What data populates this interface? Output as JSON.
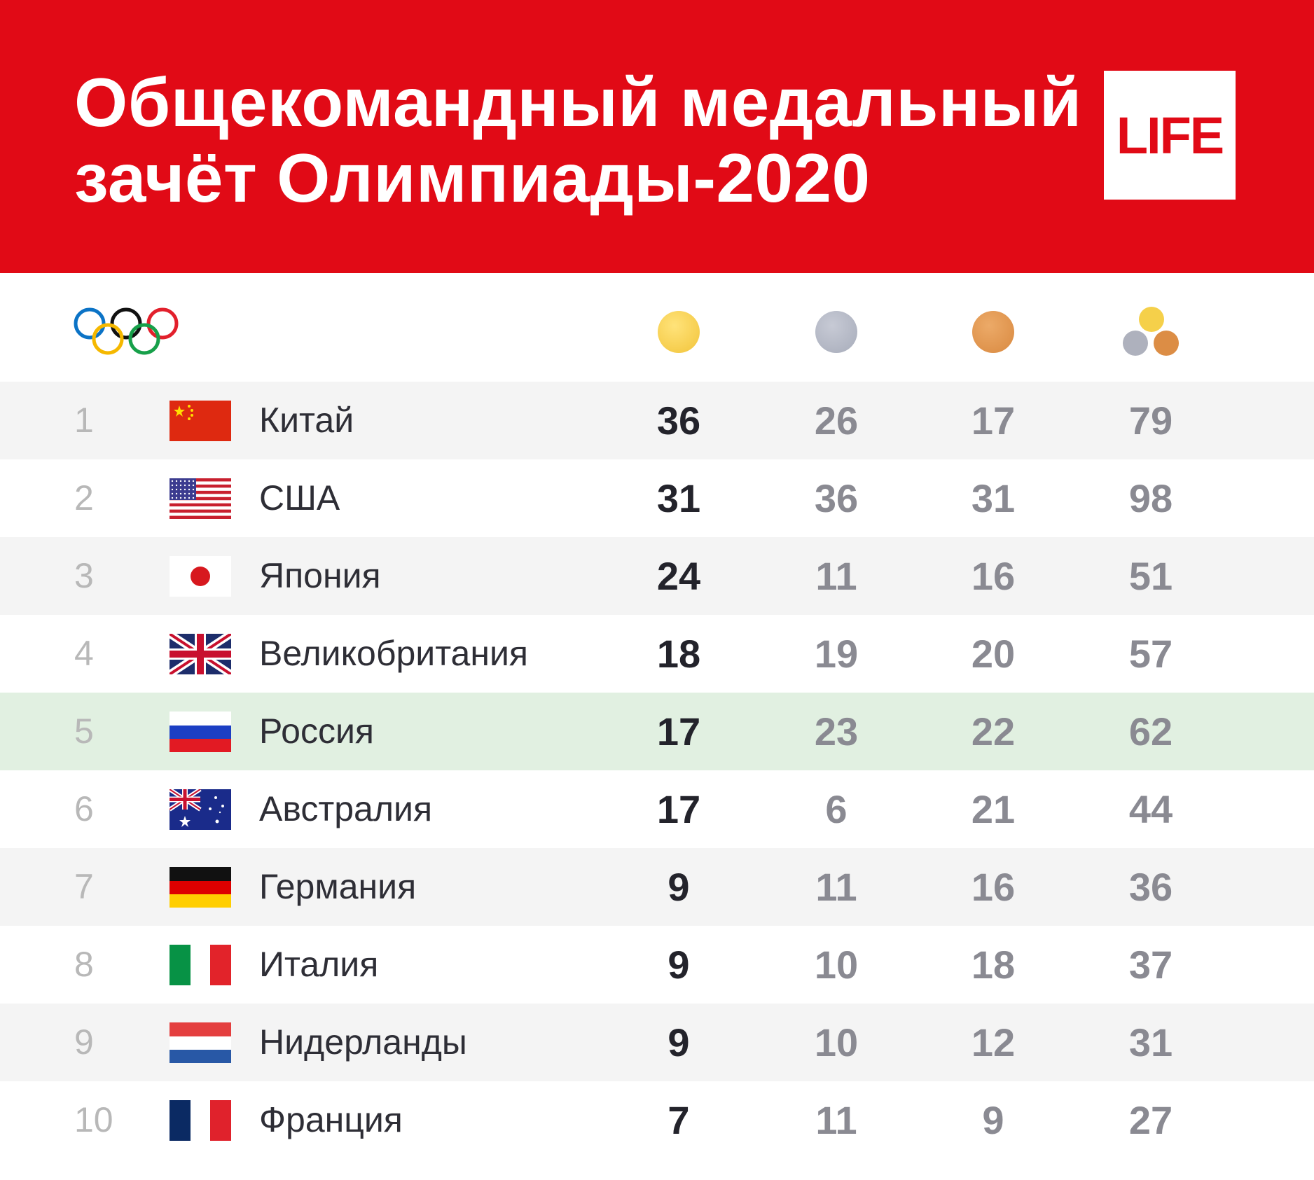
{
  "header": {
    "title_line1": "Общекомандный медальный",
    "title_line2": "зачёт Олимпиады-2020",
    "logo": "LIFE",
    "brand_color": "#e10a16"
  },
  "column_icons": [
    "olympic-rings-icon",
    "gold-medal-icon",
    "silver-medal-icon",
    "bronze-medal-icon",
    "total-medals-icon"
  ],
  "medal_colors": {
    "gold": "#f2c43a",
    "silver": "#a7acba",
    "bronze": "#d98940"
  },
  "rows": [
    {
      "rank": "1",
      "flag": "china-flag-icon",
      "country": "Китай",
      "gold": "36",
      "silver": "26",
      "bronze": "17",
      "total": "79"
    },
    {
      "rank": "2",
      "flag": "usa-flag-icon",
      "country": "США",
      "gold": "31",
      "silver": "36",
      "bronze": "31",
      "total": "98"
    },
    {
      "rank": "3",
      "flag": "japan-flag-icon",
      "country": "Япония",
      "gold": "24",
      "silver": "11",
      "bronze": "16",
      "total": "51"
    },
    {
      "rank": "4",
      "flag": "uk-flag-icon",
      "country": "Великобритания",
      "gold": "18",
      "silver": "19",
      "bronze": "20",
      "total": "57"
    },
    {
      "rank": "5",
      "flag": "russia-flag-icon",
      "country": "Россия",
      "gold": "17",
      "silver": "23",
      "bronze": "22",
      "total": "62"
    },
    {
      "rank": "6",
      "flag": "australia-flag-icon",
      "country": "Австралия",
      "gold": "17",
      "silver": "6",
      "bronze": "21",
      "total": "44"
    },
    {
      "rank": "7",
      "flag": "germany-flag-icon",
      "country": "Германия",
      "gold": "9",
      "silver": "11",
      "bronze": "16",
      "total": "36"
    },
    {
      "rank": "8",
      "flag": "italy-flag-icon",
      "country": "Италия",
      "gold": "9",
      "silver": "10",
      "bronze": "18",
      "total": "37"
    },
    {
      "rank": "9",
      "flag": "netherlands-flag-icon",
      "country": "Нидерланды",
      "gold": "9",
      "silver": "10",
      "bronze": "12",
      "total": "31"
    },
    {
      "rank": "10",
      "flag": "france-flag-icon",
      "country": "Франция",
      "gold": "7",
      "silver": "11",
      "bronze": "9",
      "total": "27"
    }
  ]
}
